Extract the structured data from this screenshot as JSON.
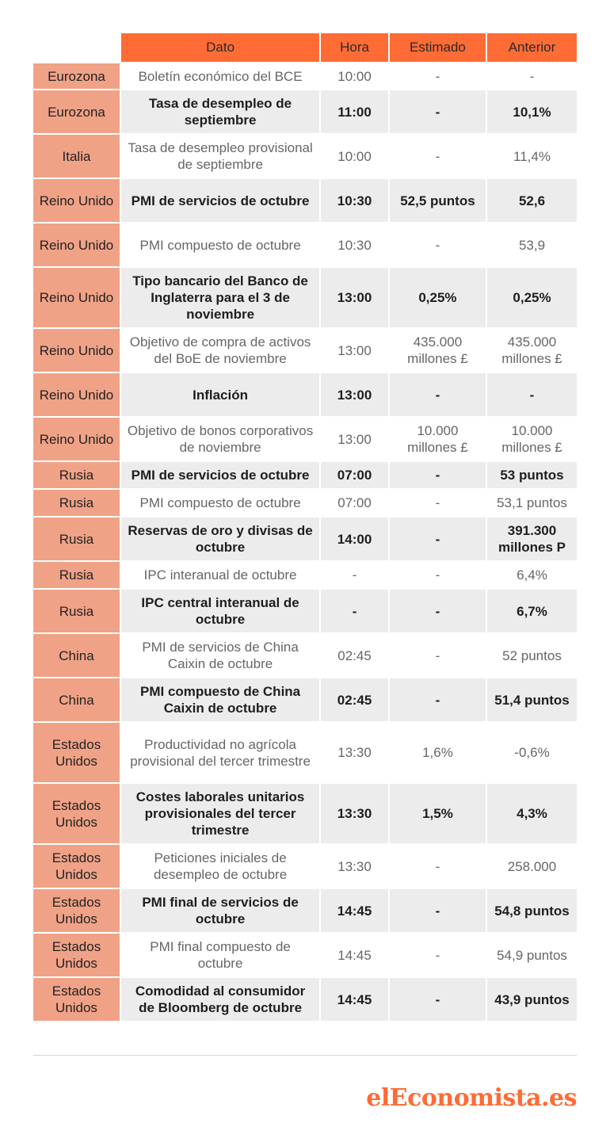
{
  "header": {
    "dato": "Dato",
    "hora": "Hora",
    "estimado": "Estimado",
    "anterior": "Anterior"
  },
  "rows": [
    {
      "country": "Eurozona",
      "dato": "Boletín económico del BCE",
      "hora": "10:00",
      "estimado": "-",
      "anterior": "-",
      "style": "light",
      "h": 34
    },
    {
      "country": "Eurozona",
      "dato": "Tasa de desempleo de septiembre",
      "hora": "11:00",
      "estimado": "-",
      "anterior": "10,1%",
      "style": "dark",
      "h": 56
    },
    {
      "country": "Italia",
      "dato": "Tasa de desempleo provisional de septiembre",
      "hora": "10:00",
      "estimado": "-",
      "anterior": "11,4%",
      "style": "light",
      "h": 56
    },
    {
      "country": "Reino Unido",
      "dato": "PMI de servicios de octubre",
      "hora": "10:30",
      "estimado": "52,5 puntos",
      "anterior": "52,6",
      "style": "dark",
      "h": 56
    },
    {
      "country": "Reino Unido",
      "dato": "PMI compuesto de octubre",
      "hora": "10:30",
      "estimado": "-",
      "anterior": "53,9",
      "style": "light",
      "h": 56
    },
    {
      "country": "Reino Unido",
      "dato": "Tipo bancario del Banco de Inglaterra para el 3 de noviembre",
      "hora": "13:00",
      "estimado": "0,25%",
      "anterior": "0,25%",
      "style": "dark",
      "h": 77
    },
    {
      "country": "Reino Unido",
      "dato": "Objetivo de compra de activos del BoE de noviembre",
      "hora": "13:00",
      "estimado": "435.000 millones £",
      "anterior": "435.000 millones £",
      "style": "light",
      "h": 56
    },
    {
      "country": "Reino Unido",
      "dato": "Inflación",
      "hora": "13:00",
      "estimado": "-",
      "anterior": "-",
      "style": "dark",
      "h": 56
    },
    {
      "country": "Reino Unido",
      "dato": "Objetivo de bonos corporativos de noviembre",
      "hora": "13:00",
      "estimado": "10.000 millones £",
      "anterior": "10.000 millones £",
      "style": "light",
      "h": 56
    },
    {
      "country": "Rusia",
      "dato": "PMI de servicios de octubre",
      "hora": "07:00",
      "estimado": "-",
      "anterior": "53 puntos",
      "style": "dark",
      "h": 35
    },
    {
      "country": "Rusia",
      "dato": "PMI compuesto de octubre",
      "hora": "07:00",
      "estimado": "-",
      "anterior": "53,1 puntos",
      "style": "light",
      "h": 35
    },
    {
      "country": "Rusia",
      "dato": "Reservas de oro y divisas de octubre",
      "hora": "14:00",
      "estimado": "-",
      "anterior": "391.300 millones P",
      "style": "dark",
      "h": 56
    },
    {
      "country": "Rusia",
      "dato": "IPC interanual de octubre",
      "hora": "-",
      "estimado": "-",
      "anterior": "6,4%",
      "style": "light",
      "h": 35
    },
    {
      "country": "Rusia",
      "dato": "IPC central interanual de octubre",
      "hora": "-",
      "estimado": "-",
      "anterior": "6,7%",
      "style": "dark",
      "h": 56
    },
    {
      "country": "China",
      "dato": "PMI de servicios de China Caixin de octubre",
      "hora": "02:45",
      "estimado": "-",
      "anterior": "52 puntos",
      "style": "light",
      "h": 56
    },
    {
      "country": "China",
      "dato": "PMI compuesto de China Caixin de octubre",
      "hora": "02:45",
      "estimado": "-",
      "anterior": "51,4 puntos",
      "style": "dark",
      "h": 56
    },
    {
      "country": "Estados Unidos",
      "dato": "Productividad no agrícola provisional del tercer trimestre",
      "hora": "13:30",
      "estimado": "1,6%",
      "anterior": "-0,6%",
      "style": "light",
      "h": 77
    },
    {
      "country": "Estados Unidos",
      "dato": "Costes laborales unitarios provisionales del tercer trimestre",
      "hora": "13:30",
      "estimado": "1,5%",
      "anterior": "4,3%",
      "style": "dark",
      "h": 77
    },
    {
      "country": "Estados Unidos",
      "dato": "Peticiones iniciales de desempleo de octubre",
      "hora": "13:30",
      "estimado": "-",
      "anterior": "258.000",
      "style": "light",
      "h": 56
    },
    {
      "country": "Estados Unidos",
      "dato": "PMI final de servicios de octubre",
      "hora": "14:45",
      "estimado": "-",
      "anterior": "54,8 puntos",
      "style": "dark",
      "h": 56
    },
    {
      "country": "Estados Unidos",
      "dato": "PMI final compuesto de octubre",
      "hora": "14:45",
      "estimado": "-",
      "anterior": "54,9 puntos",
      "style": "light",
      "h": 56
    },
    {
      "country": "Estados Unidos",
      "dato": "Comodidad al consumidor de Bloomberg de octubre",
      "hora": "14:45",
      "estimado": "-",
      "anterior": "43,9 puntos",
      "style": "dark",
      "h": 56
    }
  ],
  "logo": {
    "text": "elEconomista.es"
  },
  "colors": {
    "accent": "#ff6b35",
    "country_bg": "#f0a287",
    "dark_row_bg": "#ececec"
  }
}
